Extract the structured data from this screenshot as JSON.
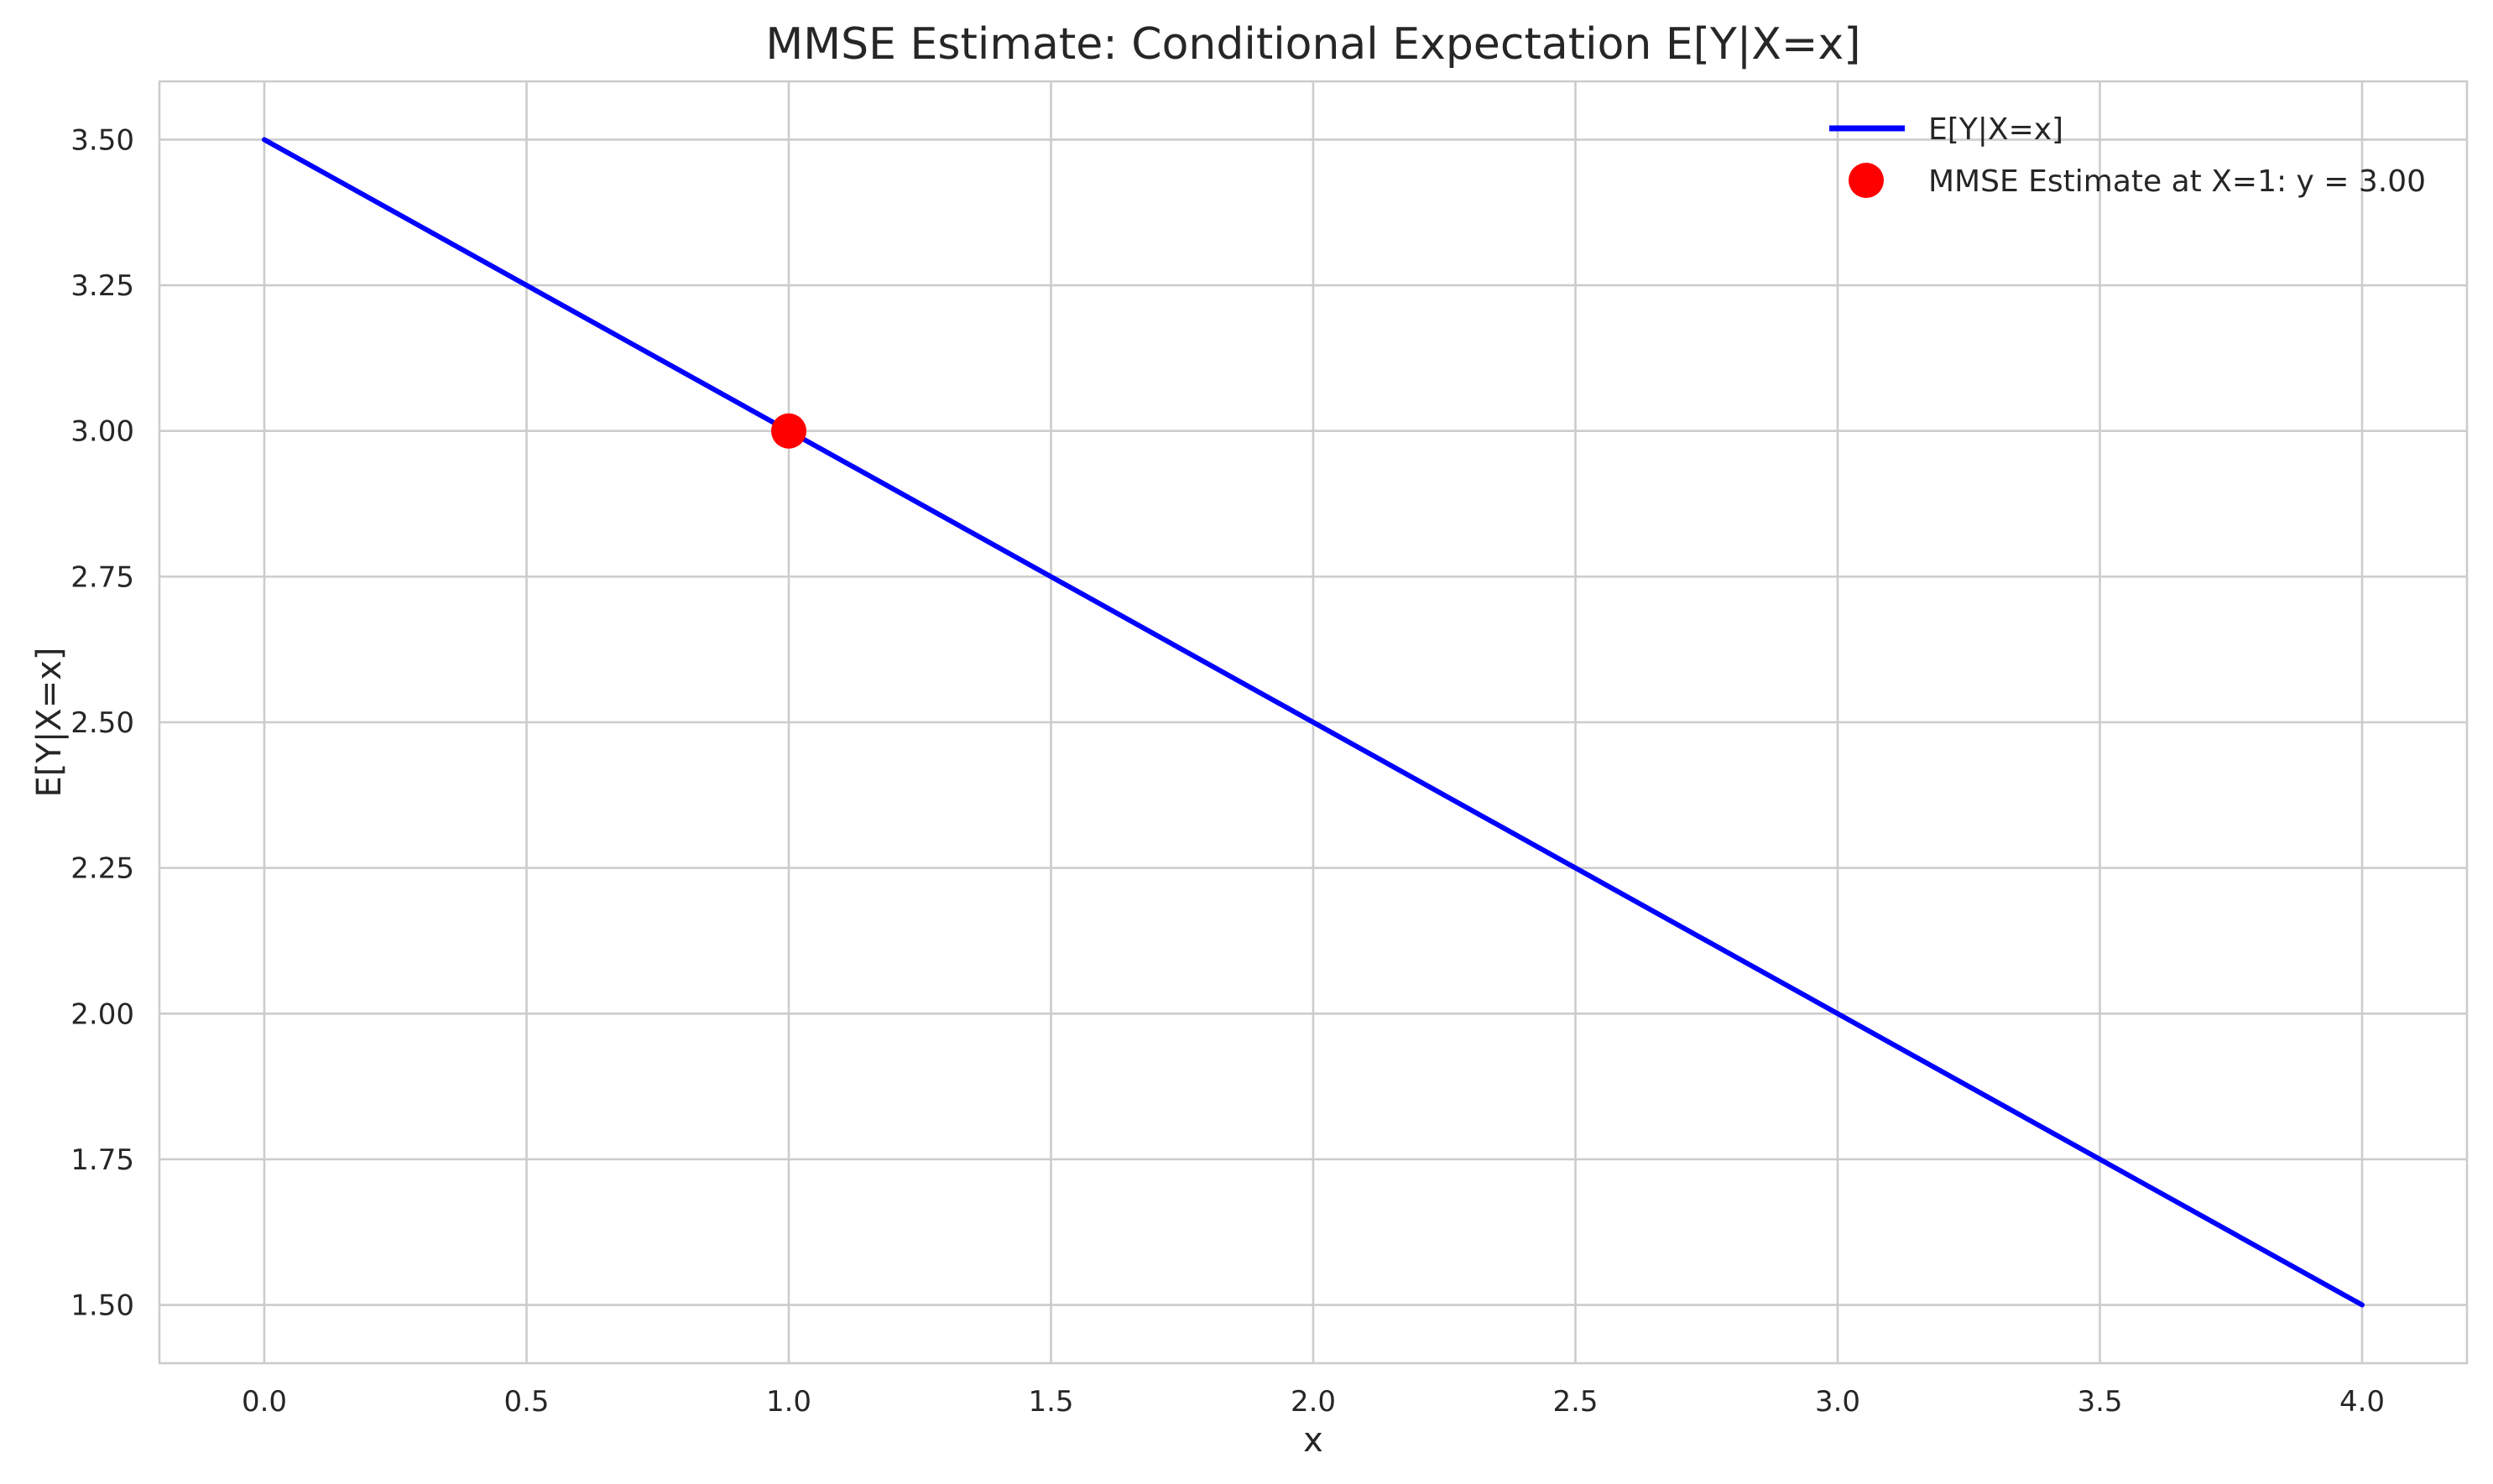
{
  "chart_data": {
    "type": "line",
    "title": "MMSE Estimate: Conditional Expectation E[Y|X=x]",
    "xlabel": "x",
    "ylabel": "E[Y|X=x]",
    "xlim": [
      -0.2,
      4.2
    ],
    "ylim": [
      1.4,
      3.6
    ],
    "x_ticks": [
      0.0,
      0.5,
      1.0,
      1.5,
      2.0,
      2.5,
      3.0,
      3.5,
      4.0
    ],
    "x_tick_labels": [
      "0.0",
      "0.5",
      "1.0",
      "1.5",
      "2.0",
      "2.5",
      "3.0",
      "3.5",
      "4.0"
    ],
    "y_ticks": [
      1.5,
      1.75,
      2.0,
      2.25,
      2.5,
      2.75,
      3.0,
      3.25,
      3.5
    ],
    "y_tick_labels": [
      "1.50",
      "1.75",
      "2.00",
      "2.25",
      "2.50",
      "2.75",
      "3.00",
      "3.25",
      "3.50"
    ],
    "grid": true,
    "legend_position": "top-right",
    "series": [
      {
        "name": "E[Y|X=x]",
        "type": "line",
        "color": "#0000ff",
        "x": [
          0.0,
          4.0
        ],
        "y": [
          3.5,
          1.5
        ]
      },
      {
        "name": "MMSE Estimate at X=1: y = 3.00",
        "type": "scatter",
        "color": "#ff0000",
        "x": [
          1.0
        ],
        "y": [
          3.0
        ]
      }
    ]
  }
}
